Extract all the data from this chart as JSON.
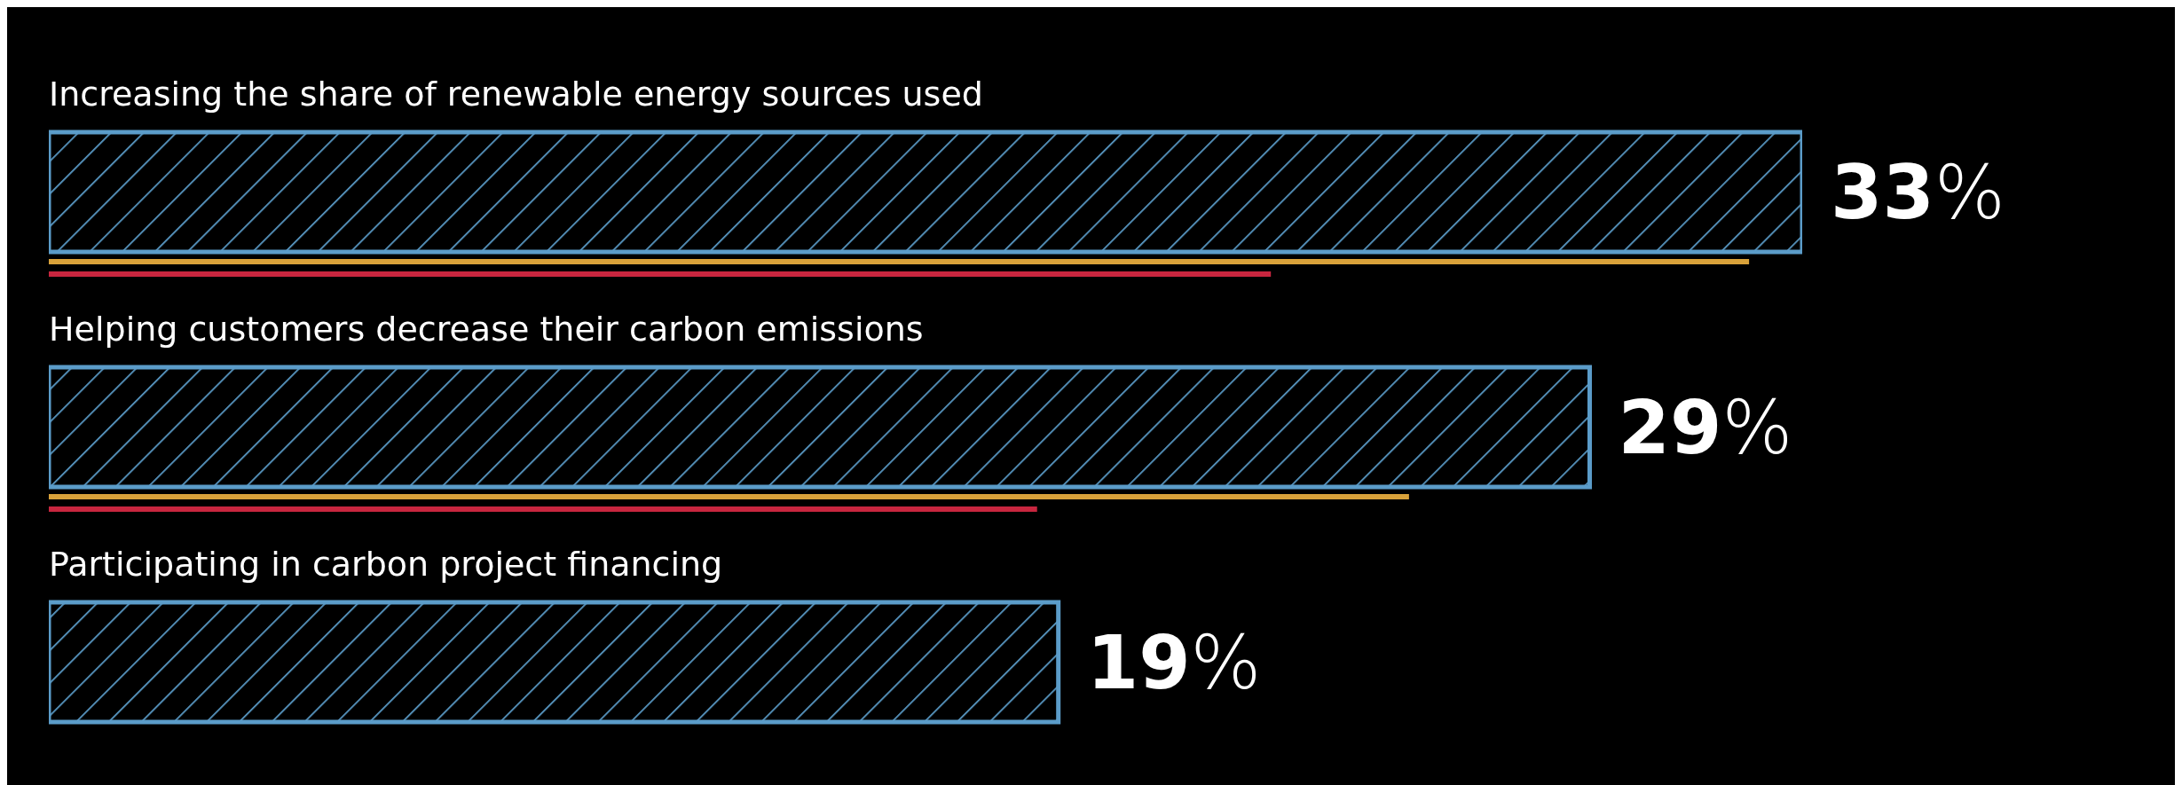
{
  "chart_data": {
    "type": "bar",
    "orientation": "horizontal",
    "categories": [
      "Increasing the share of renewable energy sources used",
      "Helping customers decrease their carbon emissions",
      "Participating in carbon project financing"
    ],
    "series": [
      {
        "color": "#5b9cc9",
        "values": [
          33,
          29,
          19
        ],
        "value_labels": [
          "33%",
          "29%",
          "19%"
        ]
      },
      {
        "color": "#d9a23a",
        "values": [
          32,
          25.6,
          null
        ]
      },
      {
        "color": "#c8263f",
        "values": [
          23,
          18.6,
          null
        ]
      }
    ],
    "tick_labels": false
  }
}
